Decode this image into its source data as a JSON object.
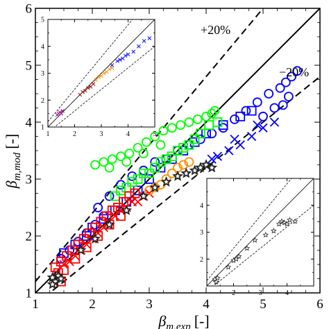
{
  "chart_data": [
    {
      "panel": "main",
      "type": "scatter",
      "title": "",
      "xlabel": "β m,exp [-]",
      "xlabel_parts": {
        "beta": "β",
        "sub": "m,exp",
        "unit": "[-]"
      },
      "ylabel": "β m,mod [-]",
      "ylabel_parts": {
        "beta": "β",
        "sub": "m,mod",
        "unit": "[-]"
      },
      "xlim": [
        1,
        6
      ],
      "ylim": [
        1,
        6
      ],
      "xticks": [
        "1",
        "2",
        "3",
        "4",
        "5",
        "6"
      ],
      "yticks": [
        "1",
        "2",
        "3",
        "4",
        "5",
        "6"
      ],
      "grid": false,
      "legend": "none",
      "annotations": [
        "+20%",
        "−20%"
      ],
      "reference_lines": [
        {
          "name": "parity",
          "slope": 1.0,
          "style": "solid"
        },
        {
          "name": "+20%",
          "slope": 1.2,
          "style": "dashed"
        },
        {
          "name": "−20%",
          "slope": 0.8,
          "style": "dashed"
        }
      ],
      "series": [
        {
          "marker": "circle",
          "color": "#0000ff",
          "points": [
            [
              1.45,
              1.6
            ],
            [
              1.6,
              1.75
            ],
            [
              1.75,
              1.9
            ],
            [
              1.9,
              2.05
            ],
            [
              2.05,
              2.2
            ],
            [
              2.2,
              2.35
            ],
            [
              2.1,
              2.5
            ],
            [
              2.3,
              2.7
            ],
            [
              2.5,
              2.9
            ],
            [
              2.7,
              3.05
            ],
            [
              2.9,
              3.15
            ],
            [
              3.1,
              3.3
            ],
            [
              3.3,
              3.35
            ],
            [
              3.5,
              3.5
            ],
            [
              3.7,
              3.6
            ],
            [
              3.9,
              3.7
            ],
            [
              4.1,
              3.8
            ],
            [
              4.3,
              3.9
            ],
            [
              4.5,
              4.05
            ],
            [
              4.7,
              4.2
            ],
            [
              4.9,
              4.35
            ],
            [
              5.1,
              4.5
            ],
            [
              5.3,
              4.6
            ],
            [
              5.4,
              4.7
            ],
            [
              5.5,
              4.8
            ],
            [
              5.6,
              4.9
            ],
            [
              5.35,
              4.3
            ],
            [
              5.45,
              4.45
            ],
            [
              5.2,
              4.25
            ],
            [
              5.0,
              4.1
            ]
          ]
        },
        {
          "marker": "square",
          "color": "#0000ff",
          "points": [
            [
              1.5,
              1.7
            ],
            [
              1.7,
              1.85
            ],
            [
              1.9,
              2.0
            ],
            [
              2.0,
              2.15
            ],
            [
              2.2,
              2.3
            ],
            [
              2.4,
              2.45
            ],
            [
              2.6,
              2.6
            ],
            [
              2.8,
              2.8
            ],
            [
              3.0,
              3.0
            ],
            [
              3.2,
              3.2
            ],
            [
              3.4,
              3.35
            ],
            [
              3.6,
              3.5
            ],
            [
              3.8,
              3.65
            ],
            [
              4.0,
              3.8
            ],
            [
              4.3,
              3.95
            ],
            [
              4.6,
              4.1
            ],
            [
              4.8,
              4.2
            ]
          ]
        },
        {
          "marker": "cross",
          "color": "#0000ff",
          "points": [
            [
              4.2,
              3.4
            ],
            [
              4.4,
              3.5
            ],
            [
              4.6,
              3.6
            ],
            [
              4.8,
              3.75
            ],
            [
              5.0,
              3.9
            ],
            [
              5.2,
              4.0
            ],
            [
              4.1,
              3.35
            ],
            [
              4.5,
              3.7
            ],
            [
              4.9,
              3.95
            ]
          ]
        },
        {
          "marker": "circle",
          "color": "#00ff00",
          "points": [
            [
              2.05,
              3.25
            ],
            [
              2.2,
              3.3
            ],
            [
              2.35,
              3.35
            ],
            [
              2.5,
              3.4
            ],
            [
              2.65,
              3.45
            ],
            [
              2.8,
              3.55
            ],
            [
              2.95,
              3.65
            ],
            [
              3.1,
              3.75
            ],
            [
              3.25,
              3.85
            ],
            [
              3.4,
              3.9
            ],
            [
              3.55,
              3.95
            ],
            [
              3.7,
              4.0
            ],
            [
              3.85,
              4.05
            ],
            [
              4.0,
              4.1
            ],
            [
              4.1,
              4.15
            ],
            [
              4.15,
              4.2
            ],
            [
              2.3,
              3.2
            ],
            [
              2.6,
              3.3
            ],
            [
              2.9,
              3.45
            ],
            [
              3.2,
              3.6
            ]
          ]
        },
        {
          "marker": "square",
          "color": "#00ff00",
          "points": [
            [
              2.5,
              2.8
            ],
            [
              2.7,
              2.95
            ],
            [
              2.9,
              3.1
            ],
            [
              3.1,
              3.2
            ],
            [
              3.3,
              3.35
            ],
            [
              3.5,
              3.5
            ],
            [
              3.7,
              3.6
            ],
            [
              3.9,
              3.8
            ],
            [
              4.05,
              3.95
            ],
            [
              4.2,
              4.0
            ],
            [
              2.4,
              2.7
            ],
            [
              2.6,
              2.85
            ],
            [
              2.8,
              3.0
            ],
            [
              3.0,
              3.1
            ],
            [
              3.2,
              3.3
            ],
            [
              3.4,
              3.4
            ],
            [
              3.6,
              3.55
            ],
            [
              3.8,
              3.7
            ]
          ]
        },
        {
          "marker": "square",
          "color": "#ff0000",
          "points": [
            [
              1.35,
              1.45
            ],
            [
              1.45,
              1.55
            ],
            [
              1.55,
              1.65
            ],
            [
              1.65,
              1.75
            ],
            [
              1.75,
              1.85
            ],
            [
              1.85,
              1.95
            ],
            [
              1.95,
              2.05
            ],
            [
              2.05,
              2.15
            ],
            [
              2.15,
              2.25
            ],
            [
              2.25,
              2.35
            ],
            [
              2.35,
              2.45
            ],
            [
              2.45,
              2.5
            ],
            [
              2.55,
              2.6
            ],
            [
              2.65,
              2.7
            ],
            [
              2.75,
              2.75
            ],
            [
              1.5,
              1.4
            ],
            [
              1.7,
              1.6
            ],
            [
              1.9,
              1.8
            ],
            [
              2.1,
              2.0
            ],
            [
              2.3,
              2.2
            ],
            [
              2.5,
              2.35
            ],
            [
              1.45,
              1.2
            ],
            [
              1.4,
              1.35
            ]
          ]
        },
        {
          "marker": "cross",
          "color": "#ff0000",
          "points": [
            [
              1.5,
              1.5
            ],
            [
              1.7,
              1.65
            ],
            [
              1.9,
              1.85
            ],
            [
              2.1,
              2.05
            ],
            [
              2.3,
              2.25
            ],
            [
              2.5,
              2.45
            ],
            [
              2.7,
              2.6
            ],
            [
              2.9,
              2.7
            ],
            [
              1.6,
              1.55
            ],
            [
              1.8,
              1.75
            ],
            [
              2.0,
              1.95
            ],
            [
              2.2,
              2.15
            ],
            [
              2.4,
              2.35
            ],
            [
              2.6,
              2.5
            ],
            [
              2.8,
              2.6
            ],
            [
              3.0,
              2.75
            ]
          ]
        },
        {
          "marker": "circle",
          "color": "#ff8c00",
          "points": [
            [
              3.0,
              2.8
            ],
            [
              3.1,
              2.85
            ],
            [
              3.2,
              2.9
            ],
            [
              3.3,
              3.0
            ],
            [
              3.4,
              3.1
            ],
            [
              3.5,
              3.2
            ],
            [
              3.6,
              3.25
            ],
            [
              3.7,
              3.3
            ]
          ]
        },
        {
          "marker": "star",
          "color": "#808080",
          "points": [
            [
              1.3,
              1.27
            ],
            [
              1.35,
              1.2
            ],
            [
              1.3,
              1.15
            ],
            [
              1.4,
              1.3
            ],
            [
              1.45,
              1.25
            ],
            [
              1.8,
              1.75
            ],
            [
              2.05,
              1.95
            ],
            [
              2.3,
              2.2
            ],
            [
              2.6,
              2.45
            ],
            [
              2.9,
              2.7
            ],
            [
              3.1,
              2.85
            ],
            [
              3.3,
              2.95
            ],
            [
              3.5,
              3.05
            ],
            [
              3.65,
              3.1
            ],
            [
              3.8,
              3.15
            ],
            [
              3.9,
              3.2
            ],
            [
              4.0,
              3.25
            ],
            [
              4.1,
              3.2
            ]
          ]
        }
      ]
    },
    {
      "panel": "inset-top-left",
      "type": "scatter",
      "xlim": [
        1,
        5
      ],
      "ylim": [
        1,
        5
      ],
      "xticks": [
        "1",
        "2",
        "3",
        "4",
        "5"
      ],
      "yticks": [
        "1",
        "2",
        "3",
        "4",
        "5"
      ],
      "grid": false,
      "reference_lines": [
        {
          "slope": 1.0,
          "style": "solid"
        },
        {
          "slope": 1.2,
          "style": "dashed"
        },
        {
          "slope": 0.8,
          "style": "dashed"
        }
      ],
      "series": [
        {
          "marker": "cross",
          "color": "#800080",
          "points": [
            [
              1.35,
              1.45
            ],
            [
              1.4,
              1.5
            ],
            [
              1.45,
              1.55
            ],
            [
              1.5,
              1.5
            ],
            [
              1.55,
              1.6
            ]
          ]
        },
        {
          "marker": "cross",
          "color": "#8b0000",
          "points": [
            [
              2.2,
              2.2
            ],
            [
              2.3,
              2.3
            ],
            [
              2.4,
              2.35
            ],
            [
              2.5,
              2.45
            ],
            [
              2.6,
              2.5
            ],
            [
              2.7,
              2.6
            ]
          ]
        },
        {
          "marker": "cross",
          "color": "#ff8c00",
          "points": [
            [
              2.8,
              2.75
            ],
            [
              2.9,
              2.85
            ],
            [
              3.0,
              2.9
            ],
            [
              3.1,
              3.0
            ],
            [
              3.2,
              3.05
            ],
            [
              3.3,
              3.15
            ],
            [
              3.4,
              3.2
            ]
          ]
        },
        {
          "marker": "cross",
          "color": "#0000ff",
          "points": [
            [
              3.4,
              3.3
            ],
            [
              3.6,
              3.45
            ],
            [
              3.8,
              3.55
            ],
            [
              4.0,
              3.7
            ],
            [
              4.2,
              3.8
            ],
            [
              4.4,
              4.0
            ],
            [
              4.6,
              4.2
            ],
            [
              4.8,
              4.3
            ],
            [
              3.7,
              3.5
            ],
            [
              3.9,
              3.65
            ]
          ]
        }
      ]
    },
    {
      "panel": "inset-bottom-right",
      "type": "scatter",
      "xlim": [
        1,
        5
      ],
      "ylim": [
        1,
        5
      ],
      "xticks": [
        "2",
        "3",
        "4"
      ],
      "yticks": [
        "2",
        "3",
        "4"
      ],
      "grid": false,
      "reference_lines": [
        {
          "slope": 1.0,
          "style": "solid"
        },
        {
          "slope": 1.2,
          "style": "dashed"
        },
        {
          "slope": 0.8,
          "style": "dashed"
        }
      ],
      "series": [
        {
          "marker": "star",
          "color": "#808080",
          "points": [
            [
              1.3,
              1.25
            ],
            [
              1.35,
              1.15
            ],
            [
              1.4,
              1.3
            ],
            [
              1.8,
              1.7
            ],
            [
              2.0,
              1.95
            ],
            [
              2.1,
              2.0
            ],
            [
              2.2,
              2.1
            ],
            [
              2.5,
              2.4
            ],
            [
              2.8,
              2.7
            ],
            [
              3.2,
              2.9
            ],
            [
              3.5,
              3.05
            ],
            [
              3.7,
              3.3
            ],
            [
              3.8,
              3.4
            ],
            [
              3.9,
              3.35
            ],
            [
              4.0,
              3.3
            ],
            [
              4.1,
              3.45
            ],
            [
              4.3,
              3.4
            ]
          ]
        }
      ]
    }
  ]
}
